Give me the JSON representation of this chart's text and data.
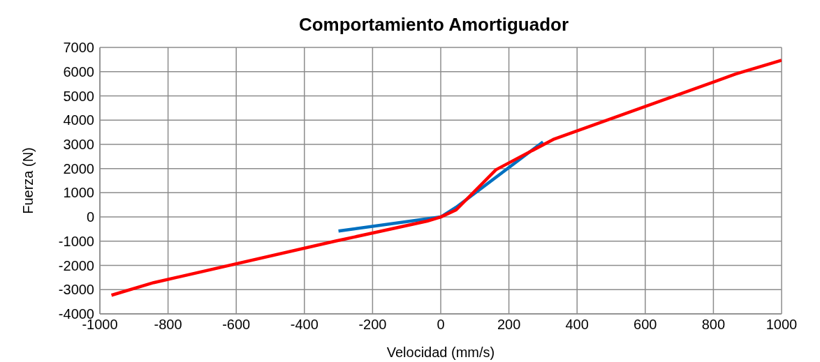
{
  "chart_data": {
    "type": "line",
    "title": "Comportamiento Amortiguador",
    "xlabel": "Velocidad (mm/s)",
    "ylabel": "Fuerza (N)",
    "xlim": [
      -1000,
      1000
    ],
    "xticks": [
      -1000,
      -800,
      -600,
      -400,
      -200,
      0,
      200,
      400,
      600,
      800,
      1000
    ],
    "ylim": [
      -4000,
      7000
    ],
    "yticks": [
      -4000,
      -3000,
      -2000,
      -1000,
      0,
      1000,
      2000,
      3000,
      4000,
      5000,
      6000,
      7000
    ],
    "grid": true,
    "marker": "none",
    "line_style": "solid",
    "series": [
      {
        "color": "#0070c0",
        "x": [
          -300,
          0,
          45,
          300
        ],
        "values": [
          -580,
          0,
          400,
          3100
        ]
      },
      {
        "color": "#ff0000",
        "x": [
          -966,
          -842,
          -310,
          -40,
          0,
          45,
          162,
          330,
          865,
          1000
        ],
        "values": [
          -3230,
          -2710,
          -1000,
          -170,
          0,
          290,
          1950,
          3200,
          5900,
          6470
        ]
      }
    ]
  }
}
